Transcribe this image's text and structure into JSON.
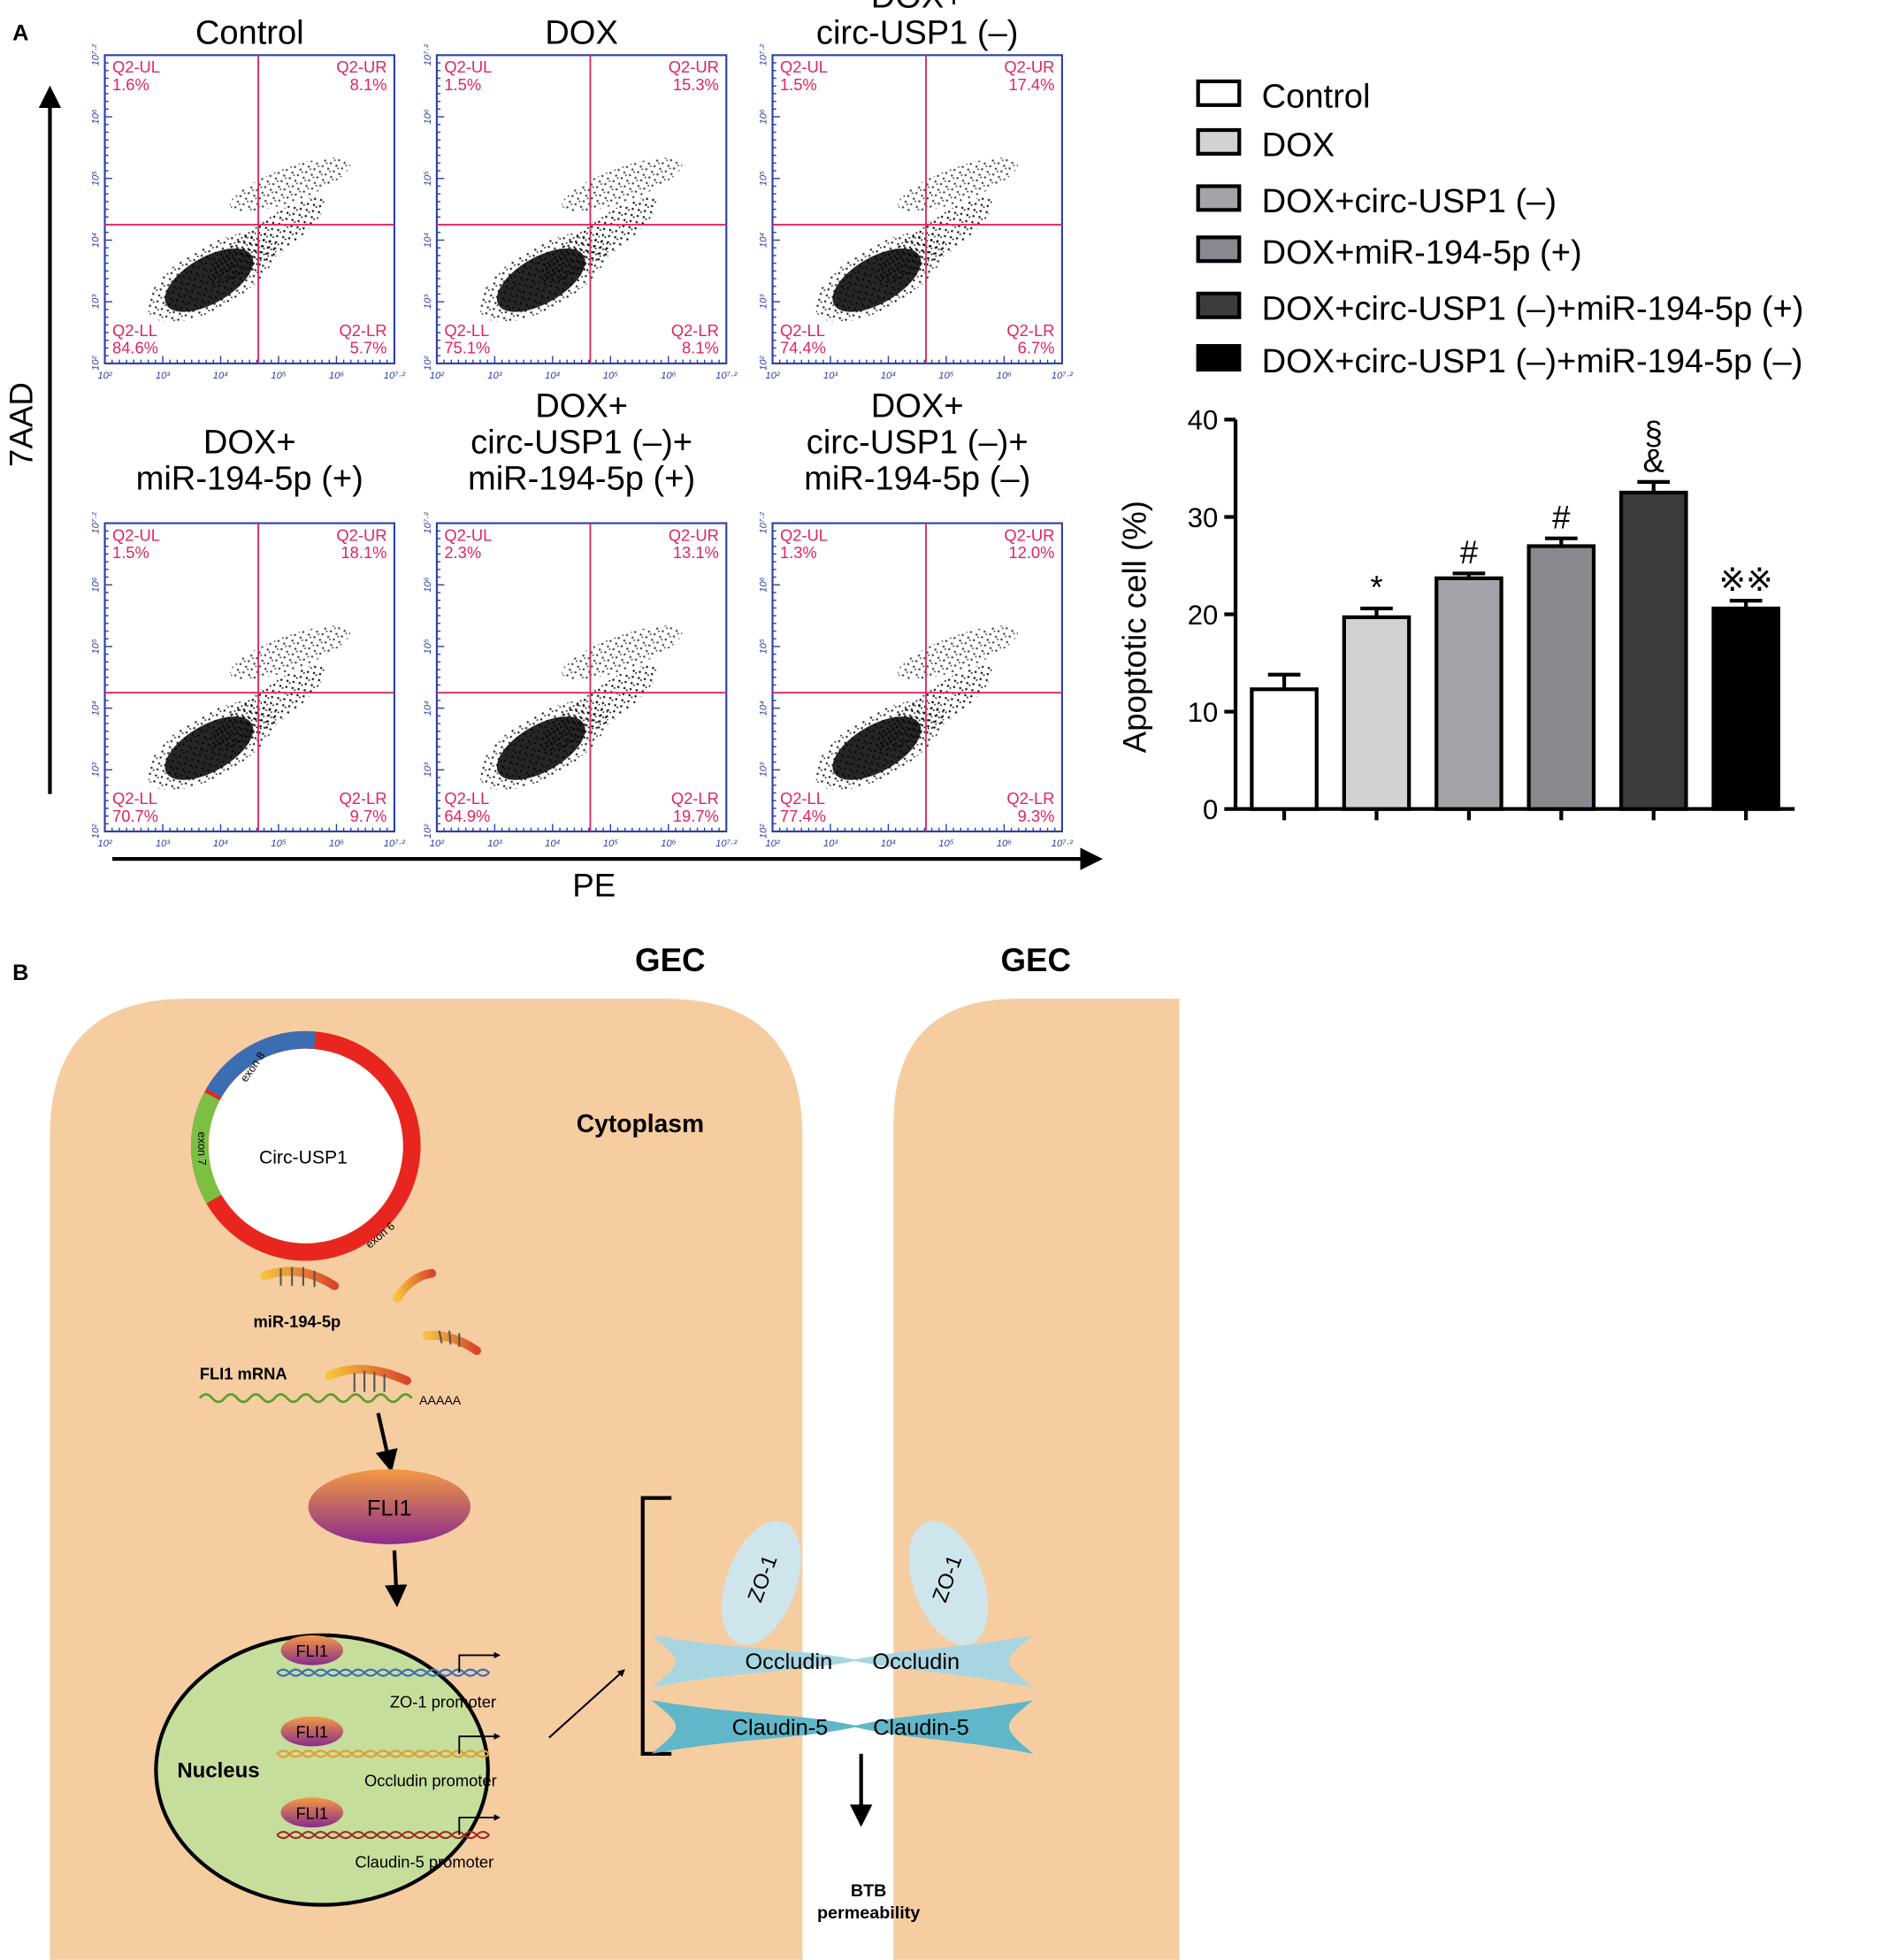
{
  "panel_labels": [
    "A",
    "B"
  ],
  "flow": {
    "y_axis_label": "7AAD",
    "x_axis_label": "PE",
    "ticks": [
      "10²",
      "10³",
      "10⁴",
      "10⁵",
      "10⁶",
      "10⁷·²"
    ],
    "quadrant_names": [
      "Q2-UL",
      "Q2-UR",
      "Q2-LL",
      "Q2-LR"
    ],
    "panels": [
      {
        "title": [
          "Control"
        ],
        "quadrants": [
          "1.6%",
          "8.1%",
          "84.6%",
          "5.7%"
        ]
      },
      {
        "title": [
          "DOX"
        ],
        "quadrants": [
          "1.5%",
          "15.3%",
          "75.1%",
          "8.1%"
        ]
      },
      {
        "title": [
          "DOX+",
          "circ-USP1 (–)"
        ],
        "quadrants": [
          "1.5%",
          "17.4%",
          "74.4%",
          "6.7%"
        ]
      },
      {
        "title": [
          "DOX+",
          "miR-194-5p (+)"
        ],
        "quadrants": [
          "1.5%",
          "18.1%",
          "70.7%",
          "9.7%"
        ]
      },
      {
        "title": [
          "DOX+",
          "circ-USP1 (–)+",
          "miR-194-5p (+)"
        ],
        "quadrants": [
          "2.3%",
          "13.1%",
          "64.9%",
          "19.7%"
        ]
      },
      {
        "title": [
          "DOX+",
          "circ-USP1 (–)+",
          "miR-194-5p (–)"
        ],
        "quadrants": [
          "1.3%",
          "12.0%",
          "77.4%",
          "9.3%"
        ]
      }
    ]
  },
  "chart_data": {
    "type": "bar",
    "y_label": "Apoptotic cell (%)",
    "categories": [
      "Control",
      "DOX",
      "DOX+circ-USP1 (–)",
      "DOX+miR-194-5p (+)",
      "DOX+circ-USP1 (–)+miR-194-5p (+)",
      "DOX+circ-USP1 (–)+miR-194-5p (–)"
    ],
    "values": [
      12.3,
      19.7,
      23.7,
      27.0,
      32.5,
      20.6
    ],
    "errors": [
      1.5,
      0.9,
      0.5,
      0.8,
      1.1,
      0.8
    ],
    "colors": [
      "#ffffff",
      "#d2d2d4",
      "#a3a3aa",
      "#88888f",
      "#3c3c3e",
      "#000000"
    ],
    "annotations": [
      null,
      [
        "*"
      ],
      [
        "#"
      ],
      [
        "#"
      ],
      [
        "&",
        "§"
      ],
      [
        "※※"
      ]
    ],
    "ylim": [
      0,
      40
    ],
    "yticks": [
      0,
      10,
      20,
      30,
      40
    ],
    "legend": "top"
  },
  "diagram": {
    "gec": [
      "GEC",
      "GEC"
    ],
    "cytoplasm": "Cytoplasm",
    "circ": "Circ-USP1",
    "exons": [
      "exon 8",
      "exon 7",
      "exon 6"
    ],
    "mirna": "miR-194-5p",
    "mrna": "FLI1 mRNA",
    "polya": "AAAAA",
    "fli1": "FLI1",
    "nucleus": "Nucleus",
    "promoters": [
      "ZO-1 promoter",
      "Occludin promoter",
      "Claudin-5 promoter"
    ],
    "zo1": "ZO-1",
    "occludin": "Occludin",
    "claudin": "Claudin-5",
    "btb": [
      "BTB",
      "permeability"
    ]
  }
}
